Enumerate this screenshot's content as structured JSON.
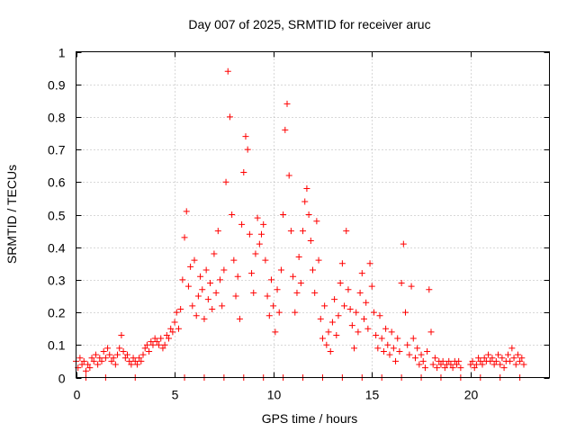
{
  "chart_data": {
    "type": "scatter",
    "title": "Day 007 of 2025, SRMTID for receiver aruc",
    "xlabel": "GPS time / hours",
    "ylabel": "SRMTID / TECUs",
    "xlim": [
      0,
      24
    ],
    "ylim": [
      0,
      1
    ],
    "xticks": [
      0,
      5,
      10,
      15,
      20
    ],
    "xtick_labels": [
      "0",
      "5",
      "10",
      "15",
      "20"
    ],
    "yticks": [
      0,
      0.1,
      0.2,
      0.3,
      0.4,
      0.5,
      0.6,
      0.7,
      0.8,
      0.9,
      1
    ],
    "ytick_labels": [
      "0",
      "0.1",
      "0.2",
      "0.3",
      "0.4",
      "0.5",
      "0.6",
      "0.7",
      "0.8",
      "0.9",
      "1"
    ],
    "grid": true,
    "marker": "+",
    "color": "#ff0000",
    "series": [
      {
        "name": "SRMTID",
        "points": [
          [
            0.0,
            0.05
          ],
          [
            0.1,
            0.03
          ],
          [
            0.2,
            0.06
          ],
          [
            0.3,
            0.04
          ],
          [
            0.4,
            0.05
          ],
          [
            0.5,
            0.02
          ],
          [
            0.6,
            0.04
          ],
          [
            0.7,
            0.03
          ],
          [
            0.8,
            0.06
          ],
          [
            0.9,
            0.05
          ],
          [
            1.0,
            0.07
          ],
          [
            1.1,
            0.04
          ],
          [
            1.2,
            0.06
          ],
          [
            1.3,
            0.05
          ],
          [
            1.4,
            0.08
          ],
          [
            1.5,
            0.06
          ],
          [
            1.6,
            0.09
          ],
          [
            1.7,
            0.07
          ],
          [
            1.8,
            0.05
          ],
          [
            1.9,
            0.06
          ],
          [
            2.0,
            0.04
          ],
          [
            2.1,
            0.07
          ],
          [
            2.2,
            0.09
          ],
          [
            2.3,
            0.13
          ],
          [
            2.4,
            0.08
          ],
          [
            2.5,
            0.06
          ],
          [
            2.6,
            0.07
          ],
          [
            2.7,
            0.05
          ],
          [
            2.8,
            0.04
          ],
          [
            2.9,
            0.06
          ],
          [
            3.0,
            0.05
          ],
          [
            3.1,
            0.04
          ],
          [
            3.2,
            0.06
          ],
          [
            3.3,
            0.05
          ],
          [
            3.4,
            0.07
          ],
          [
            3.5,
            0.09
          ],
          [
            3.6,
            0.1
          ],
          [
            3.7,
            0.08
          ],
          [
            3.8,
            0.11
          ],
          [
            3.9,
            0.1
          ],
          [
            4.0,
            0.12
          ],
          [
            4.1,
            0.11
          ],
          [
            4.2,
            0.1
          ],
          [
            4.3,
            0.12
          ],
          [
            4.4,
            0.09
          ],
          [
            4.5,
            0.1
          ],
          [
            4.6,
            0.13
          ],
          [
            4.7,
            0.12
          ],
          [
            4.8,
            0.15
          ],
          [
            4.9,
            0.14
          ],
          [
            5.0,
            0.17
          ],
          [
            5.1,
            0.2
          ],
          [
            5.2,
            0.15
          ],
          [
            5.3,
            0.21
          ],
          [
            5.4,
            0.3
          ],
          [
            5.5,
            0.43
          ],
          [
            5.6,
            0.51
          ],
          [
            5.7,
            0.28
          ],
          [
            5.8,
            0.34
          ],
          [
            5.9,
            0.22
          ],
          [
            6.0,
            0.36
          ],
          [
            6.1,
            0.19
          ],
          [
            6.2,
            0.25
          ],
          [
            6.3,
            0.31
          ],
          [
            6.4,
            0.27
          ],
          [
            6.5,
            0.18
          ],
          [
            6.6,
            0.33
          ],
          [
            6.7,
            0.24
          ],
          [
            6.8,
            0.29
          ],
          [
            6.9,
            0.21
          ],
          [
            7.0,
            0.38
          ],
          [
            7.1,
            0.26
          ],
          [
            7.2,
            0.45
          ],
          [
            7.3,
            0.3
          ],
          [
            7.4,
            0.22
          ],
          [
            7.5,
            0.33
          ],
          [
            7.6,
            0.6
          ],
          [
            7.7,
            0.94
          ],
          [
            7.8,
            0.8
          ],
          [
            7.9,
            0.5
          ],
          [
            8.0,
            0.36
          ],
          [
            8.1,
            0.25
          ],
          [
            8.2,
            0.31
          ],
          [
            8.3,
            0.18
          ],
          [
            8.4,
            0.47
          ],
          [
            8.5,
            0.63
          ],
          [
            8.6,
            0.74
          ],
          [
            8.7,
            0.7
          ],
          [
            8.8,
            0.44
          ],
          [
            8.9,
            0.32
          ],
          [
            9.0,
            0.26
          ],
          [
            9.1,
            0.38
          ],
          [
            9.2,
            0.49
          ],
          [
            9.3,
            0.41
          ],
          [
            9.4,
            0.44
          ],
          [
            9.5,
            0.47
          ],
          [
            9.6,
            0.36
          ],
          [
            9.7,
            0.25
          ],
          [
            9.8,
            0.19
          ],
          [
            9.9,
            0.3
          ],
          [
            10.0,
            0.22
          ],
          [
            10.1,
            0.14
          ],
          [
            10.2,
            0.27
          ],
          [
            10.3,
            0.2
          ],
          [
            10.4,
            0.33
          ],
          [
            10.5,
            0.5
          ],
          [
            10.6,
            0.76
          ],
          [
            10.7,
            0.84
          ],
          [
            10.8,
            0.62
          ],
          [
            10.9,
            0.45
          ],
          [
            11.0,
            0.31
          ],
          [
            11.1,
            0.2
          ],
          [
            11.2,
            0.26
          ],
          [
            11.3,
            0.37
          ],
          [
            11.4,
            0.29
          ],
          [
            11.5,
            0.45
          ],
          [
            11.6,
            0.54
          ],
          [
            11.7,
            0.58
          ],
          [
            11.8,
            0.5
          ],
          [
            11.9,
            0.42
          ],
          [
            12.0,
            0.33
          ],
          [
            12.1,
            0.26
          ],
          [
            12.2,
            0.48
          ],
          [
            12.3,
            0.36
          ],
          [
            12.4,
            0.18
          ],
          [
            12.5,
            0.12
          ],
          [
            12.6,
            0.22
          ],
          [
            12.7,
            0.1
          ],
          [
            12.8,
            0.14
          ],
          [
            12.9,
            0.08
          ],
          [
            13.0,
            0.17
          ],
          [
            13.1,
            0.24
          ],
          [
            13.2,
            0.13
          ],
          [
            13.3,
            0.19
          ],
          [
            13.4,
            0.29
          ],
          [
            13.5,
            0.35
          ],
          [
            13.6,
            0.22
          ],
          [
            13.7,
            0.45
          ],
          [
            13.8,
            0.27
          ],
          [
            13.9,
            0.21
          ],
          [
            14.0,
            0.16
          ],
          [
            14.1,
            0.09
          ],
          [
            14.2,
            0.2
          ],
          [
            14.3,
            0.14
          ],
          [
            14.4,
            0.26
          ],
          [
            14.5,
            0.32
          ],
          [
            14.6,
            0.18
          ],
          [
            14.7,
            0.23
          ],
          [
            14.8,
            0.15
          ],
          [
            14.9,
            0.35
          ],
          [
            15.0,
            0.28
          ],
          [
            15.1,
            0.2
          ],
          [
            15.2,
            0.13
          ],
          [
            15.3,
            0.09
          ],
          [
            15.4,
            0.19
          ],
          [
            15.5,
            0.12
          ],
          [
            15.6,
            0.08
          ],
          [
            15.7,
            0.15
          ],
          [
            15.8,
            0.1
          ],
          [
            15.9,
            0.07
          ],
          [
            16.0,
            0.14
          ],
          [
            16.1,
            0.09
          ],
          [
            16.2,
            0.05
          ],
          [
            16.3,
            0.12
          ],
          [
            16.4,
            0.08
          ],
          [
            16.5,
            0.29
          ],
          [
            16.6,
            0.41
          ],
          [
            16.7,
            0.2
          ],
          [
            16.8,
            0.1
          ],
          [
            16.9,
            0.07
          ],
          [
            17.0,
            0.28
          ],
          [
            17.1,
            0.12
          ],
          [
            17.2,
            0.06
          ],
          [
            17.3,
            0.09
          ],
          [
            17.4,
            0.04
          ],
          [
            17.5,
            0.07
          ],
          [
            17.6,
            0.05
          ],
          [
            17.7,
            0.03
          ],
          [
            17.8,
            0.08
          ],
          [
            17.9,
            0.27
          ],
          [
            18.0,
            0.14
          ],
          [
            18.1,
            0.04
          ],
          [
            18.2,
            0.06
          ],
          [
            18.3,
            0.03
          ],
          [
            18.4,
            0.05
          ],
          [
            18.5,
            0.04
          ],
          [
            18.6,
            0.05
          ],
          [
            18.7,
            0.03
          ],
          [
            18.8,
            0.04
          ],
          [
            18.9,
            0.05
          ],
          [
            19.0,
            0.04
          ],
          [
            19.1,
            0.03
          ],
          [
            19.2,
            0.05
          ],
          [
            19.3,
            0.04
          ],
          [
            19.4,
            0.05
          ],
          [
            19.5,
            0.03
          ],
          [
            20.0,
            0.04
          ],
          [
            20.1,
            0.05
          ],
          [
            20.2,
            0.03
          ],
          [
            20.3,
            0.04
          ],
          [
            20.4,
            0.06
          ],
          [
            20.5,
            0.05
          ],
          [
            20.6,
            0.04
          ],
          [
            20.7,
            0.06
          ],
          [
            20.8,
            0.05
          ],
          [
            20.9,
            0.07
          ],
          [
            21.0,
            0.05
          ],
          [
            21.1,
            0.06
          ],
          [
            21.2,
            0.04
          ],
          [
            21.3,
            0.05
          ],
          [
            21.4,
            0.07
          ],
          [
            21.5,
            0.04
          ],
          [
            21.6,
            0.06
          ],
          [
            21.7,
            0.03
          ],
          [
            21.8,
            0.05
          ],
          [
            21.9,
            0.07
          ],
          [
            22.0,
            0.05
          ],
          [
            22.1,
            0.09
          ],
          [
            22.2,
            0.06
          ],
          [
            22.3,
            0.04
          ],
          [
            22.4,
            0.07
          ],
          [
            22.5,
            0.05
          ],
          [
            22.6,
            0.06
          ],
          [
            22.7,
            0.04
          ],
          [
            0.5,
            0.0
          ],
          [
            1.5,
            0.0
          ],
          [
            3.0,
            0.0
          ],
          [
            5.5,
            0.0
          ],
          [
            6.5,
            0.0
          ],
          [
            7.5,
            0.0
          ],
          [
            8.5,
            0.0
          ],
          [
            9.5,
            0.0
          ],
          [
            10.5,
            0.0
          ],
          [
            11.5,
            0.0
          ],
          [
            12.5,
            0.0
          ],
          [
            13.5,
            0.0
          ],
          [
            14.5,
            0.0
          ],
          [
            15.5,
            0.0
          ],
          [
            16.5,
            0.0
          ],
          [
            17.5,
            0.0
          ],
          [
            18.5,
            0.0
          ],
          [
            19.5,
            0.0
          ],
          [
            20.5,
            0.0
          ],
          [
            21.5,
            0.0
          ],
          [
            22.5,
            0.0
          ]
        ]
      }
    ]
  }
}
